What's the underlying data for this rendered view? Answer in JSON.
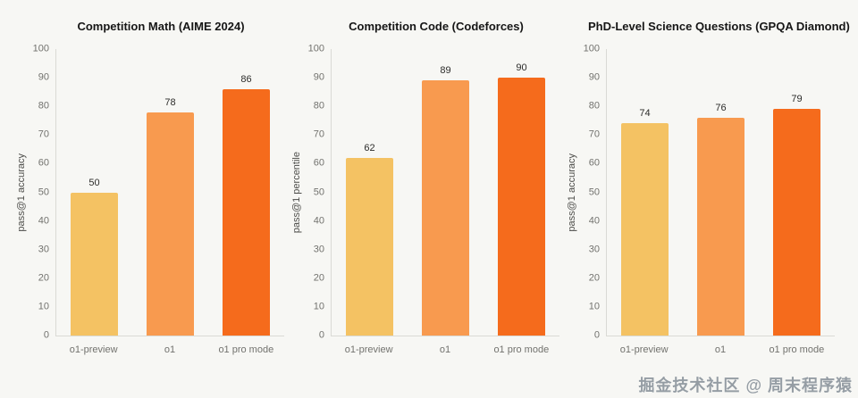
{
  "watermark": "掘金技术社区 @ 周末程序猿",
  "chart_data": [
    {
      "type": "bar",
      "title": "Competition Math (AIME 2024)",
      "ylabel": "pass@1 accuracy",
      "xlabel": "",
      "categories": [
        "o1-preview",
        "o1",
        "o1 pro mode"
      ],
      "values": [
        50,
        78,
        86
      ],
      "ylim": [
        0,
        100
      ],
      "ytick_step": 10,
      "grid": false,
      "legend": false,
      "bar_colors": [
        "#f4c263",
        "#f89a4f",
        "#f56b1c"
      ]
    },
    {
      "type": "bar",
      "title": "Competition Code (Codeforces)",
      "ylabel": "pass@1 percentile",
      "xlabel": "",
      "categories": [
        "o1-preview",
        "o1",
        "o1 pro mode"
      ],
      "values": [
        62,
        89,
        90
      ],
      "ylim": [
        0,
        100
      ],
      "ytick_step": 10,
      "grid": false,
      "legend": false,
      "bar_colors": [
        "#f4c263",
        "#f89a4f",
        "#f56b1c"
      ]
    },
    {
      "type": "bar",
      "title": "PhD-Level Science Questions (GPQA Diamond)",
      "ylabel": "pass@1 accuracy",
      "xlabel": "",
      "categories": [
        "o1-preview",
        "o1",
        "o1 pro mode"
      ],
      "values": [
        74,
        76,
        79
      ],
      "ylim": [
        0,
        100
      ],
      "ytick_step": 10,
      "grid": false,
      "legend": false,
      "bar_colors": [
        "#f4c263",
        "#f89a4f",
        "#f56b1c"
      ]
    }
  ]
}
